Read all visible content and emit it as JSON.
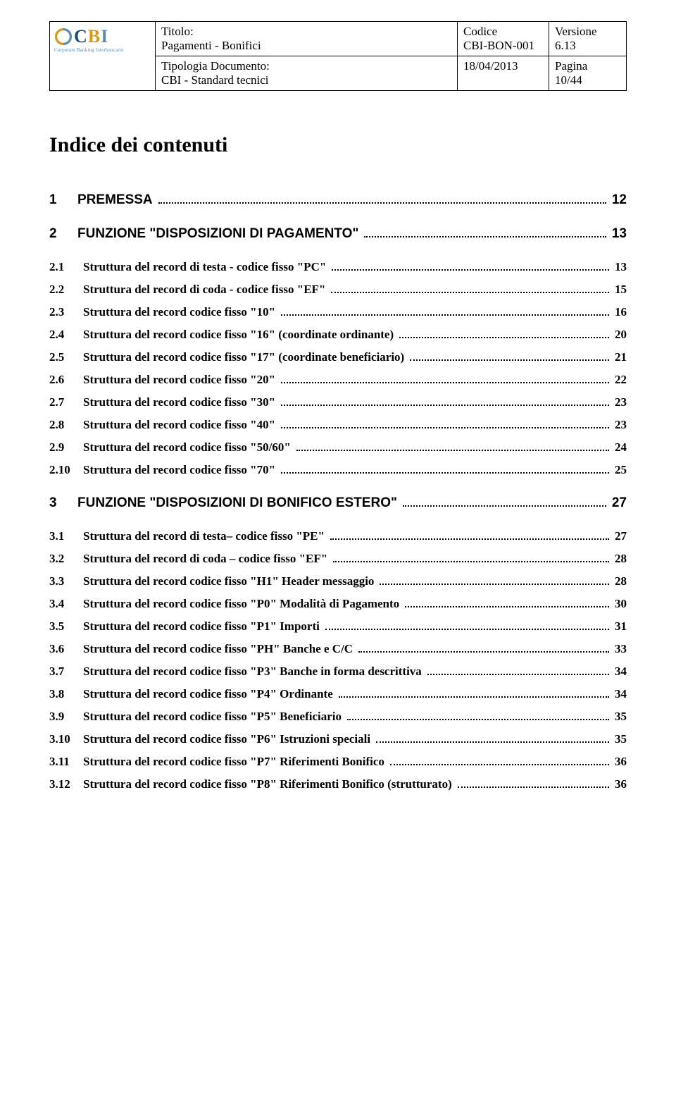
{
  "header": {
    "labels": {
      "titolo": "Titolo:",
      "tipologia": "Tipologia Documento:",
      "codice": "Codice",
      "versione": "Versione",
      "pagina": "Pagina"
    },
    "titolo_val": "Pagamenti - Bonifici",
    "tipologia_val": "CBI - Standard tecnici",
    "codice_val": "CBI-BON-001",
    "versione_val": "6.13",
    "data_val": "18/04/2013",
    "pagina_val": "10/44",
    "logo": {
      "text": "CBI",
      "subtitle": "Corporate Banking Interbancario"
    }
  },
  "toc_title": "Indice dei contenuti",
  "toc": [
    {
      "level": 1,
      "num": "1",
      "label": "PREMESSA",
      "page": "12"
    },
    {
      "level": 1,
      "num": "2",
      "label": "FUNZIONE \"DISPOSIZIONI DI PAGAMENTO\"",
      "page": "13"
    },
    {
      "level": 2,
      "num": "2.1",
      "label": "Struttura del record di testa - codice fisso \"PC\"",
      "page": "13"
    },
    {
      "level": 2,
      "num": "2.2",
      "label": "Struttura del record di coda - codice fisso \"EF\"",
      "page": "15"
    },
    {
      "level": 2,
      "num": "2.3",
      "label": "Struttura del record codice fisso \"10\"",
      "page": "16"
    },
    {
      "level": 2,
      "num": "2.4",
      "label": "Struttura del record codice fisso \"16\" (coordinate ordinante)",
      "page": "20"
    },
    {
      "level": 2,
      "num": "2.5",
      "label": "Struttura del record codice fisso \"17\" (coordinate beneficiario)",
      "page": "21"
    },
    {
      "level": 2,
      "num": "2.6",
      "label": "Struttura del record codice fisso \"20\"",
      "page": "22"
    },
    {
      "level": 2,
      "num": "2.7",
      "label": "Struttura del record codice fisso \"30\"",
      "page": "23"
    },
    {
      "level": 2,
      "num": "2.8",
      "label": "Struttura del record codice fisso \"40\"",
      "page": "23"
    },
    {
      "level": 2,
      "num": "2.9",
      "label": "Struttura del record codice fisso \"50/60\"",
      "page": "24"
    },
    {
      "level": 2,
      "num": "2.10",
      "label": "Struttura del record codice fisso \"70\"",
      "page": "25"
    },
    {
      "level": 1,
      "num": "3",
      "label": "FUNZIONE \"DISPOSIZIONI DI BONIFICO ESTERO\"",
      "page": "27"
    },
    {
      "level": 2,
      "num": "3.1",
      "label": "Struttura del record di testa– codice fisso \"PE\"",
      "page": "27"
    },
    {
      "level": 2,
      "num": "3.2",
      "label": "Struttura del record di coda – codice fisso \"EF\"",
      "page": "28"
    },
    {
      "level": 2,
      "num": "3.3",
      "label": "Struttura del record codice fisso \"H1\" Header messaggio",
      "page": "28"
    },
    {
      "level": 2,
      "num": "3.4",
      "label": "Struttura del record codice fisso \"P0\" Modalità di Pagamento",
      "page": "30"
    },
    {
      "level": 2,
      "num": "3.5",
      "label": "Struttura del record codice fisso \"P1\" Importi",
      "page": "31"
    },
    {
      "level": 2,
      "num": "3.6",
      "label": "Struttura del record codice fisso \"PH\" Banche e C/C",
      "page": "33"
    },
    {
      "level": 2,
      "num": "3.7",
      "label": "Struttura del record codice fisso \"P3\" Banche in forma descrittiva",
      "page": "34"
    },
    {
      "level": 2,
      "num": "3.8",
      "label": "Struttura del record codice fisso \"P4\" Ordinante",
      "page": "34"
    },
    {
      "level": 2,
      "num": "3.9",
      "label": "Struttura del record codice fisso \"P5\" Beneficiario",
      "page": "35"
    },
    {
      "level": 2,
      "num": "3.10",
      "label": "Struttura del record codice fisso \"P6\" Istruzioni speciali",
      "page": "35"
    },
    {
      "level": 2,
      "num": "3.11",
      "label": "Struttura del record codice fisso \"P7\" Riferimenti Bonifico",
      "page": "36"
    },
    {
      "level": 2,
      "num": "3.12",
      "label": "Struttura del record codice fisso \"P8\" Riferimenti Bonifico (strutturato)",
      "page": "36"
    }
  ],
  "colors": {
    "text": "#000000",
    "border": "#000000",
    "logo_c": "#1a4b7a",
    "logo_b": "#d49b1a",
    "logo_i": "#5a8bb0"
  }
}
